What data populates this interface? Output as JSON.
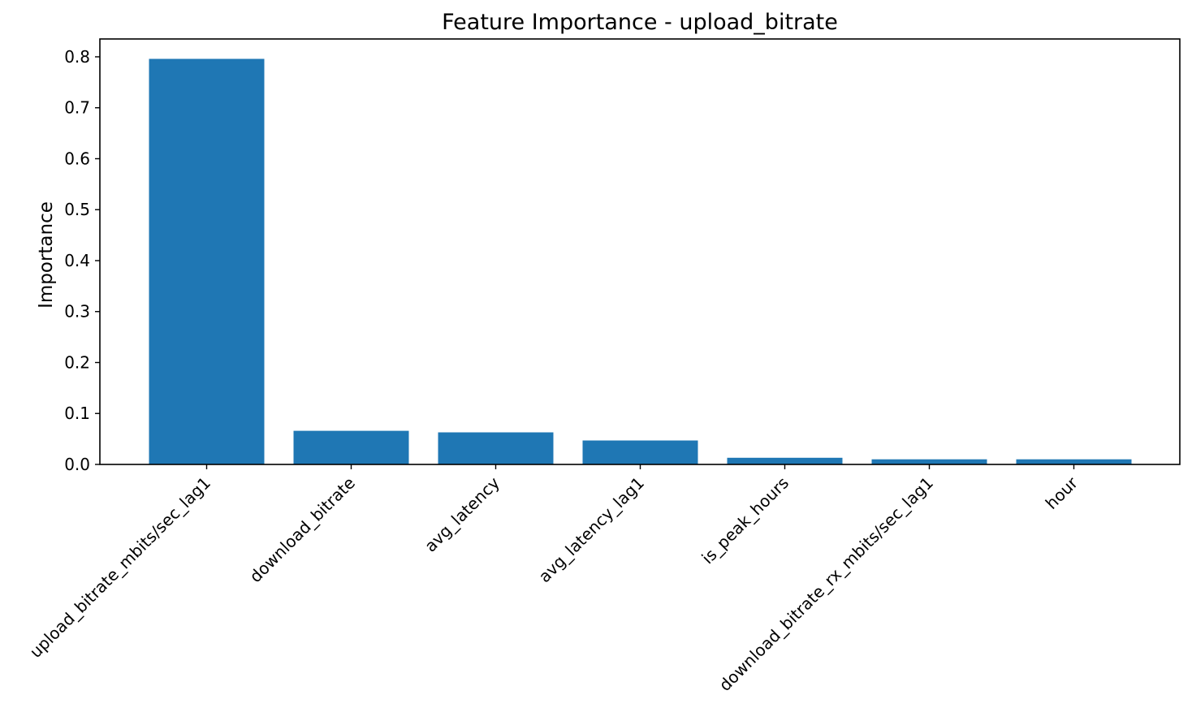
{
  "chart_data": {
    "type": "bar",
    "title": "Feature Importance - upload_bitrate",
    "xlabel": "",
    "ylabel": "Importance",
    "categories": [
      "upload_bitrate_mbits/sec_lag1",
      "download_bitrate",
      "avg_latency",
      "avg_latency_lag1",
      "is_peak_hours",
      "download_bitrate_rx_mbits/sec_lag1",
      "hour"
    ],
    "values": [
      0.796,
      0.066,
      0.063,
      0.047,
      0.013,
      0.01,
      0.01
    ],
    "ylim": [
      0,
      0.835
    ],
    "yticks": [
      0.0,
      0.1,
      0.2,
      0.3,
      0.4,
      0.5,
      0.6,
      0.7,
      0.8
    ],
    "ytick_labels": [
      "0.0",
      "0.1",
      "0.2",
      "0.3",
      "0.4",
      "0.5",
      "0.6",
      "0.7",
      "0.8"
    ],
    "grid": false,
    "bar_color": "#1f77b4"
  }
}
